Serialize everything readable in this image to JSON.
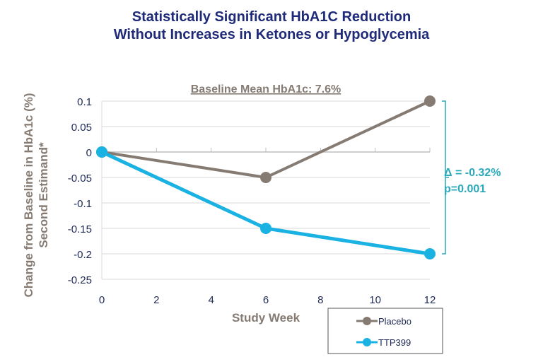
{
  "title_lines": [
    "Statistically Significant HbA1C Reduction",
    "Without Increases in Ketones or Hypoglycemia"
  ],
  "chart_data": {
    "type": "line",
    "subtitle": "Baseline Mean HbA1c: 7.6%",
    "xlabel": "Study Week",
    "ylabel_lines": [
      "Change from Baseline in HbA1c (%)",
      "Second Estimand*"
    ],
    "xlim": [
      0,
      12
    ],
    "ylim": [
      -0.25,
      0.1
    ],
    "xticks": [
      0,
      2,
      4,
      6,
      8,
      10,
      12
    ],
    "yticks": [
      0.1,
      0.05,
      0,
      -0.05,
      -0.1,
      -0.15,
      -0.2,
      -0.25
    ],
    "ytick_labels": [
      "0.1",
      "0.05",
      "0",
      "-0.05",
      "-0.1",
      "-0.15",
      "-0.2",
      "-0.25"
    ],
    "grid": "horizontal",
    "legend_placement": "bottom-right",
    "series": [
      {
        "name": "Placebo",
        "color": "#867b72",
        "x": [
          0,
          6,
          12
        ],
        "y": [
          0,
          -0.05,
          0.1
        ]
      },
      {
        "name": "TTP399",
        "color": "#1ab2e2",
        "x": [
          0,
          6,
          12
        ],
        "y": [
          0,
          -0.15,
          -0.2
        ]
      }
    ],
    "annotation": {
      "lines": [
        "Δ = -0.32%",
        "p=0.001"
      ],
      "color": "#2aa9b9"
    }
  }
}
